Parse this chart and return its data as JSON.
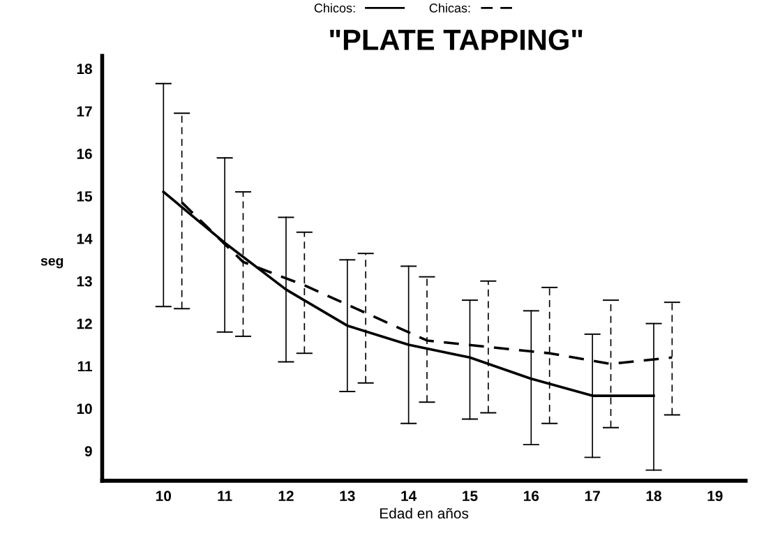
{
  "chart_data": {
    "type": "line",
    "title": "\"PLATE TAPPING\"",
    "xlabel": "Edad en años",
    "ylabel": "seg",
    "xlim": [
      9,
      19.5
    ],
    "xticks": [
      10,
      11,
      12,
      13,
      14,
      15,
      16,
      17,
      18,
      19
    ],
    "ylim": [
      8.3,
      18.3
    ],
    "yticks": [
      9,
      10,
      11,
      12,
      13,
      14,
      15,
      16,
      17,
      18
    ],
    "grid": false,
    "legend": "top",
    "marker": "none",
    "series": [
      {
        "name": "Chicos:",
        "color": "#000000",
        "line_style": "solid",
        "x": [
          10,
          11,
          12,
          13,
          14,
          15,
          16,
          17,
          18
        ],
        "values": [
          15.1,
          13.9,
          12.8,
          11.95,
          11.5,
          11.2,
          10.7,
          10.3,
          10.3
        ],
        "errors": [
          [
            12.4,
            17.65
          ],
          [
            11.8,
            15.9
          ],
          [
            11.1,
            14.5
          ],
          [
            10.4,
            13.5
          ],
          [
            9.65,
            13.35
          ],
          [
            9.75,
            12.55
          ],
          [
            9.15,
            12.3
          ],
          [
            8.85,
            11.75
          ],
          [
            8.55,
            12.0
          ]
        ]
      },
      {
        "name": "Chicas:",
        "color": "#000000",
        "line_style": "dashed",
        "x": [
          10.3,
          11.3,
          12.3,
          13.3,
          14.3,
          15.3,
          16.3,
          17.3,
          18.3
        ],
        "values": [
          14.85,
          13.45,
          12.9,
          12.25,
          11.6,
          11.45,
          11.3,
          11.05,
          11.2
        ],
        "errors": [
          [
            12.35,
            16.95
          ],
          [
            11.7,
            15.1
          ],
          [
            11.3,
            14.15
          ],
          [
            10.6,
            13.65
          ],
          [
            10.15,
            13.1
          ],
          [
            9.9,
            13.0
          ],
          [
            9.65,
            12.85
          ],
          [
            9.55,
            12.55
          ],
          [
            9.85,
            12.5
          ]
        ]
      }
    ]
  }
}
